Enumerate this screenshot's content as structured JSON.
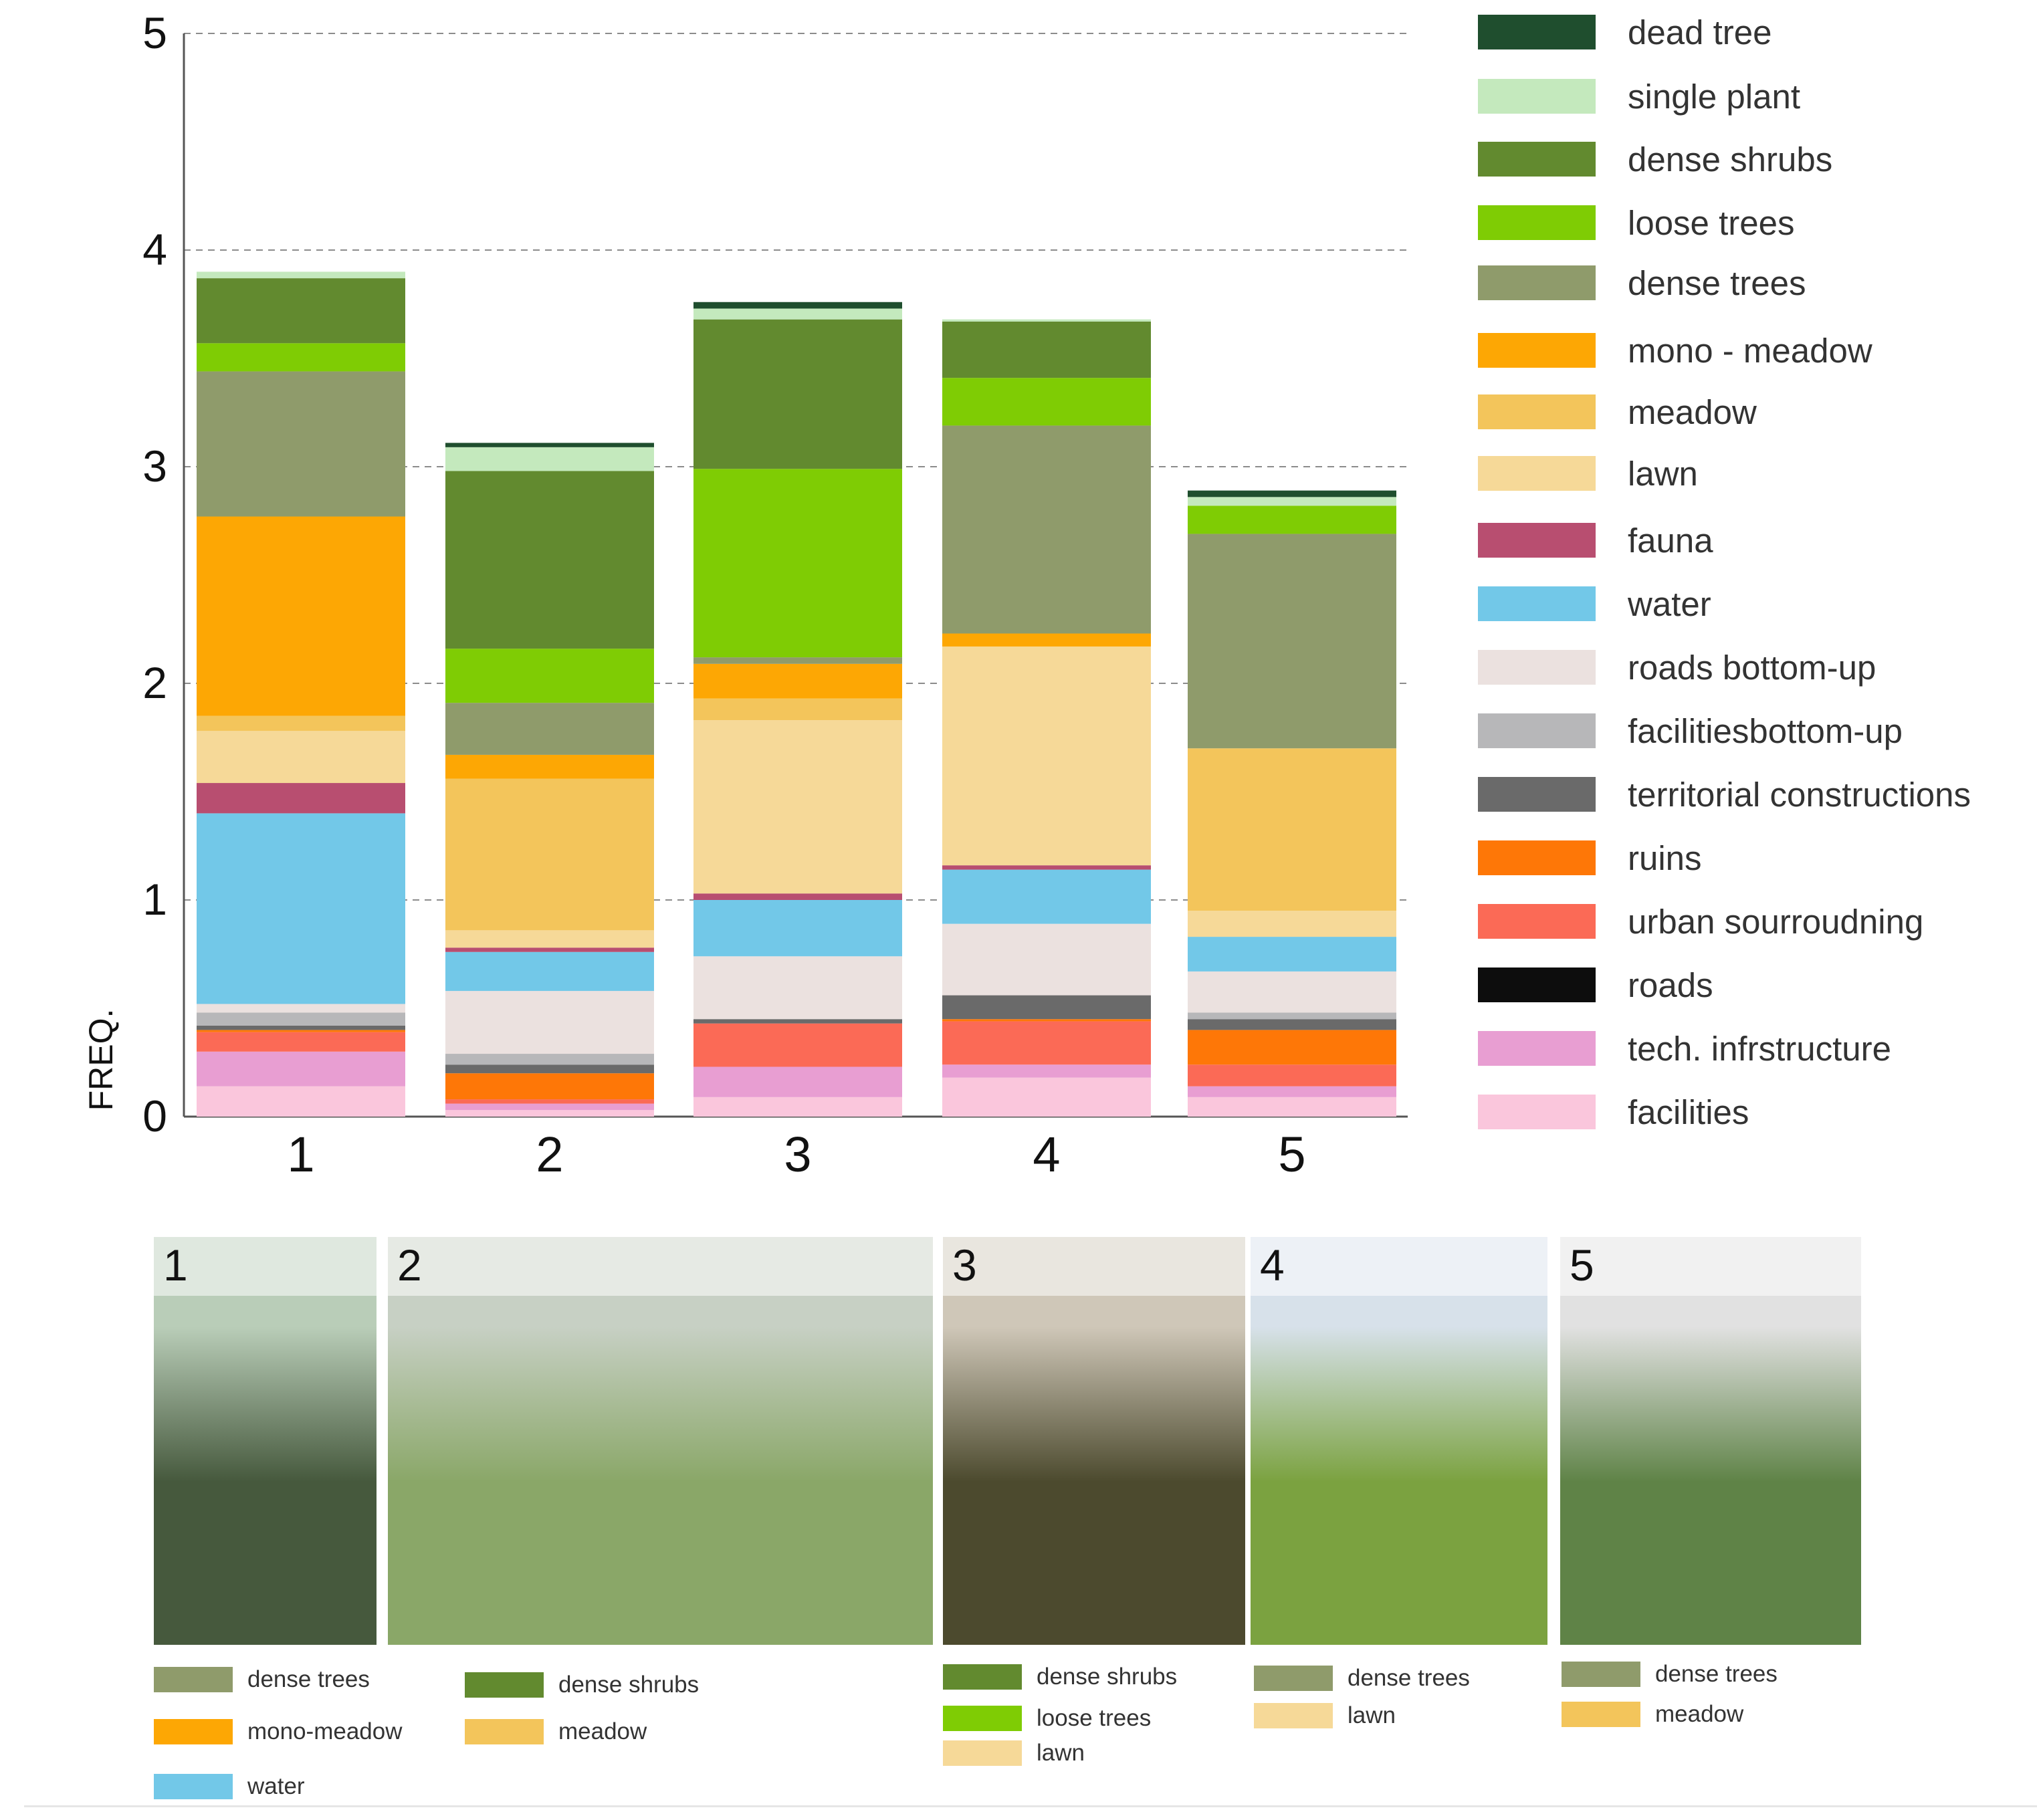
{
  "chart_data": {
    "type": "bar",
    "stacked": true,
    "ylabel": "FREQ.",
    "ylim": [
      0,
      5
    ],
    "yticks": [
      "0",
      "1",
      "2",
      "3",
      "4",
      "5"
    ],
    "categories": [
      "1",
      "2",
      "3",
      "4",
      "5"
    ],
    "grid": "dashed horizontal",
    "series": [
      {
        "name": "facilities",
        "color": "#fac6dc",
        "values": [
          0.14,
          0.03,
          0.09,
          0.18,
          0.09
        ]
      },
      {
        "name": "tech. infrstructure",
        "color": "#e89ed2",
        "values": [
          0.16,
          0.03,
          0.14,
          0.06,
          0.05
        ]
      },
      {
        "name": "roads",
        "color": "#0d0d0d",
        "values": [
          0.0,
          0.0,
          0.0,
          0.0,
          0.0
        ]
      },
      {
        "name": "urban sourroudning",
        "color": "#fb6a56",
        "values": [
          0.09,
          0.02,
          0.2,
          0.2,
          0.1
        ]
      },
      {
        "name": "ruins",
        "color": "#fe7707",
        "values": [
          0.01,
          0.12,
          0.0,
          0.01,
          0.16
        ]
      },
      {
        "name": "territorial constructions",
        "color": "#6a6a6a",
        "values": [
          0.02,
          0.04,
          0.02,
          0.11,
          0.05
        ]
      },
      {
        "name": "facilitiesbottom-up",
        "color": "#b7b7b9",
        "values": [
          0.06,
          0.05,
          0.0,
          0.0,
          0.03
        ]
      },
      {
        "name": "roads bottom-up",
        "color": "#ebe1df",
        "values": [
          0.04,
          0.29,
          0.29,
          0.33,
          0.19
        ]
      },
      {
        "name": "water",
        "color": "#72c8e8",
        "values": [
          0.88,
          0.18,
          0.26,
          0.25,
          0.16
        ]
      },
      {
        "name": "fauna",
        "color": "#b84e70",
        "values": [
          0.14,
          0.02,
          0.03,
          0.02,
          0.0
        ]
      },
      {
        "name": "lawn",
        "color": "#f6d998",
        "values": [
          0.24,
          0.08,
          0.8,
          1.01,
          0.12
        ]
      },
      {
        "name": "meadow",
        "color": "#f3c55b",
        "values": [
          0.07,
          0.7,
          0.1,
          0.0,
          0.75
        ]
      },
      {
        "name": "mono - meadow",
        "color": "#fda704",
        "values": [
          0.92,
          0.11,
          0.16,
          0.06,
          0.0
        ]
      },
      {
        "name": "dense trees",
        "color": "#8f9b6b",
        "values": [
          0.67,
          0.24,
          0.03,
          0.96,
          0.99
        ]
      },
      {
        "name": "loose trees",
        "color": "#7fcc04",
        "values": [
          0.13,
          0.25,
          0.87,
          0.22,
          0.13
        ]
      },
      {
        "name": "dense shrubs",
        "color": "#628a2f",
        "values": [
          0.3,
          0.82,
          0.69,
          0.26,
          0.0
        ]
      },
      {
        "name": "single plant",
        "color": "#c4e9bd",
        "values": [
          0.03,
          0.11,
          0.05,
          0.01,
          0.04
        ]
      },
      {
        "name": "dead tree",
        "color": "#1f4e2e",
        "values": [
          0.0,
          0.02,
          0.03,
          0.0,
          0.03
        ]
      }
    ],
    "legend": [
      {
        "label": "dead tree",
        "color": "#1f4e2e"
      },
      {
        "label": "single plant",
        "color": "#c4e9bd"
      },
      {
        "label": "dense shrubs",
        "color": "#628a2f"
      },
      {
        "label": "loose trees",
        "color": "#7fcc04"
      },
      {
        "label": "dense trees",
        "color": "#8f9b6b"
      },
      {
        "label": "mono - meadow",
        "color": "#fda704"
      },
      {
        "label": "meadow",
        "color": "#f3c55b"
      },
      {
        "label": "lawn",
        "color": "#f6d998"
      },
      {
        "label": "fauna",
        "color": "#b84e70"
      },
      {
        "label": "water",
        "color": "#72c8e8"
      },
      {
        "label": "roads bottom-up",
        "color": "#ebe1df"
      },
      {
        "label": "facilitiesbottom-up",
        "color": "#b7b7b9"
      },
      {
        "label": "territorial constructions",
        "color": "#6a6a6a"
      },
      {
        "label": "ruins",
        "color": "#fe7707"
      },
      {
        "label": "urban sourroudning",
        "color": "#fb6a56"
      },
      {
        "label": "roads",
        "color": "#0d0d0d"
      },
      {
        "label": "tech. infrstructure",
        "color": "#e89ed2"
      },
      {
        "label": "facilities",
        "color": "#fac6dc"
      }
    ]
  },
  "photos": [
    {
      "number": "1",
      "sky": "#b9cdb8",
      "ground": "#46593d"
    },
    {
      "number": "2",
      "sky": "#c7d0c4",
      "ground": "#8aa768"
    },
    {
      "number": "3",
      "sky": "#cfc7b8",
      "ground": "#4c4a2e"
    },
    {
      "number": "4",
      "sky": "#d7e1ea",
      "ground": "#7ba240"
    },
    {
      "number": "5",
      "sky": "#e1e1e1",
      "ground": "#5f8347"
    }
  ],
  "captions": [
    {
      "label": "dense trees",
      "color": "#8f9b6b"
    },
    {
      "label": "dense shrubs",
      "color": "#628a2f"
    },
    {
      "label": "mono-meadow",
      "color": "#fda704"
    },
    {
      "label": "meadow",
      "color": "#f3c55b"
    },
    {
      "label": "water",
      "color": "#72c8e8"
    },
    {
      "label": "dense shrubs",
      "color": "#628a2f"
    },
    {
      "label": "loose trees",
      "color": "#7fcc04"
    },
    {
      "label": "lawn",
      "color": "#f6d998"
    },
    {
      "label": "dense trees",
      "color": "#8f9b6b"
    },
    {
      "label": "lawn",
      "color": "#f6d998"
    },
    {
      "label": "dense trees",
      "color": "#8f9b6b"
    },
    {
      "label": "meadow",
      "color": "#f3c55b"
    }
  ]
}
